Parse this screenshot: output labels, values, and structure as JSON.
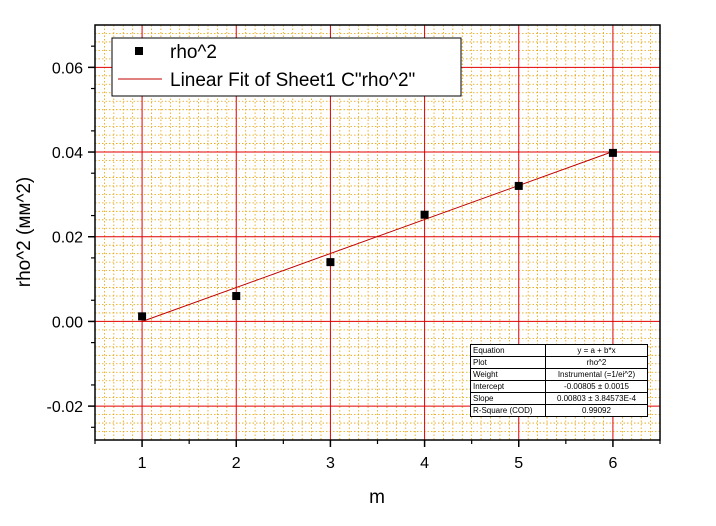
{
  "chart_data": {
    "type": "scatter",
    "xlabel": "m",
    "ylabel": "rho^2 (мм^2)",
    "xlim": [
      0.5,
      6.5
    ],
    "ylim": [
      -0.028,
      0.07
    ],
    "x_ticks": [
      "1",
      "2",
      "3",
      "4",
      "5",
      "6"
    ],
    "y_ticks": [
      "-0.02",
      "0.00",
      "0.02",
      "0.04",
      "0.06"
    ],
    "y_tick_values": [
      -0.02,
      0,
      0.02,
      0.04,
      0.06
    ],
    "grid": true,
    "series": [
      {
        "name": "rho^2",
        "kind": "scatter",
        "marker": "square",
        "color": "#000000",
        "x": [
          1,
          2,
          3,
          4,
          5,
          6
        ],
        "y": [
          0.0012,
          0.006,
          0.014,
          0.0252,
          0.032,
          0.0398
        ]
      },
      {
        "name": "Linear Fit of Sheet1 C\"rho^2\"",
        "kind": "line",
        "color": "#c00000",
        "x": [
          1,
          6
        ],
        "y": [
          -2e-05,
          0.04013
        ]
      }
    ],
    "legend_position": "top-left",
    "colors": {
      "major_grid": "#e00000",
      "minor_grid": "#e8a000",
      "fit_line": "#c00000",
      "background": "#ffffff"
    }
  },
  "fit_table": [
    {
      "key": "Equation",
      "value": "y = a + b*x"
    },
    {
      "key": "Plot",
      "value": "rho^2"
    },
    {
      "key": "Weight",
      "value": "Instrumental (=1/ei^2)"
    },
    {
      "key": "Intercept",
      "value": "-0.00805 ± 0.0015"
    },
    {
      "key": "Slope",
      "value": "0.00803 ± 3.84573E-4"
    },
    {
      "key": "R-Square (COD)",
      "value": "0.99092"
    }
  ]
}
